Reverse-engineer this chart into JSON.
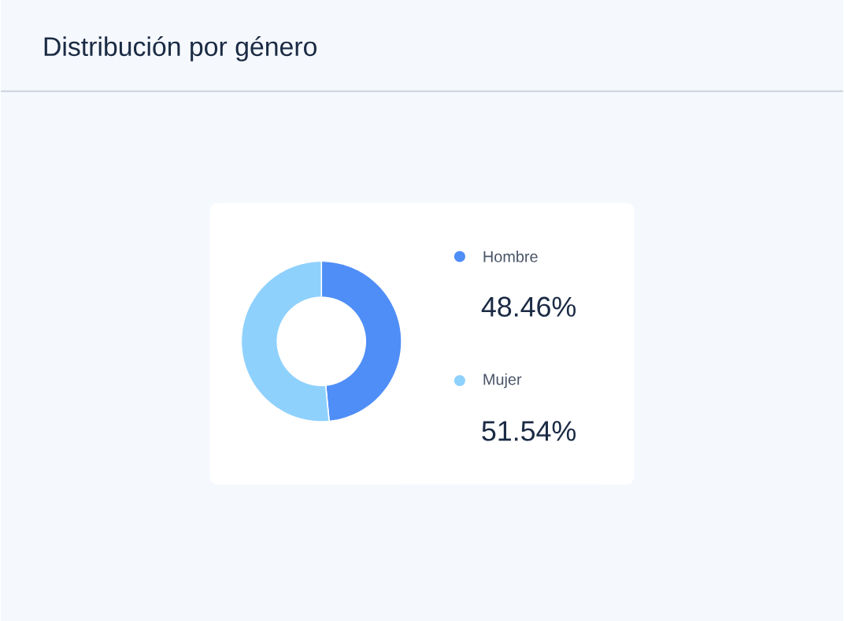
{
  "chart_data": {
    "type": "donut",
    "title": "Distribución por género",
    "categories": [
      "Hombre",
      "Mujer"
    ],
    "values": [
      48.46,
      51.54
    ],
    "colors": [
      "#4f8ef7",
      "#8fd1fd"
    ],
    "value_labels": [
      "48.46%",
      "51.54%"
    ],
    "legend": "right"
  }
}
